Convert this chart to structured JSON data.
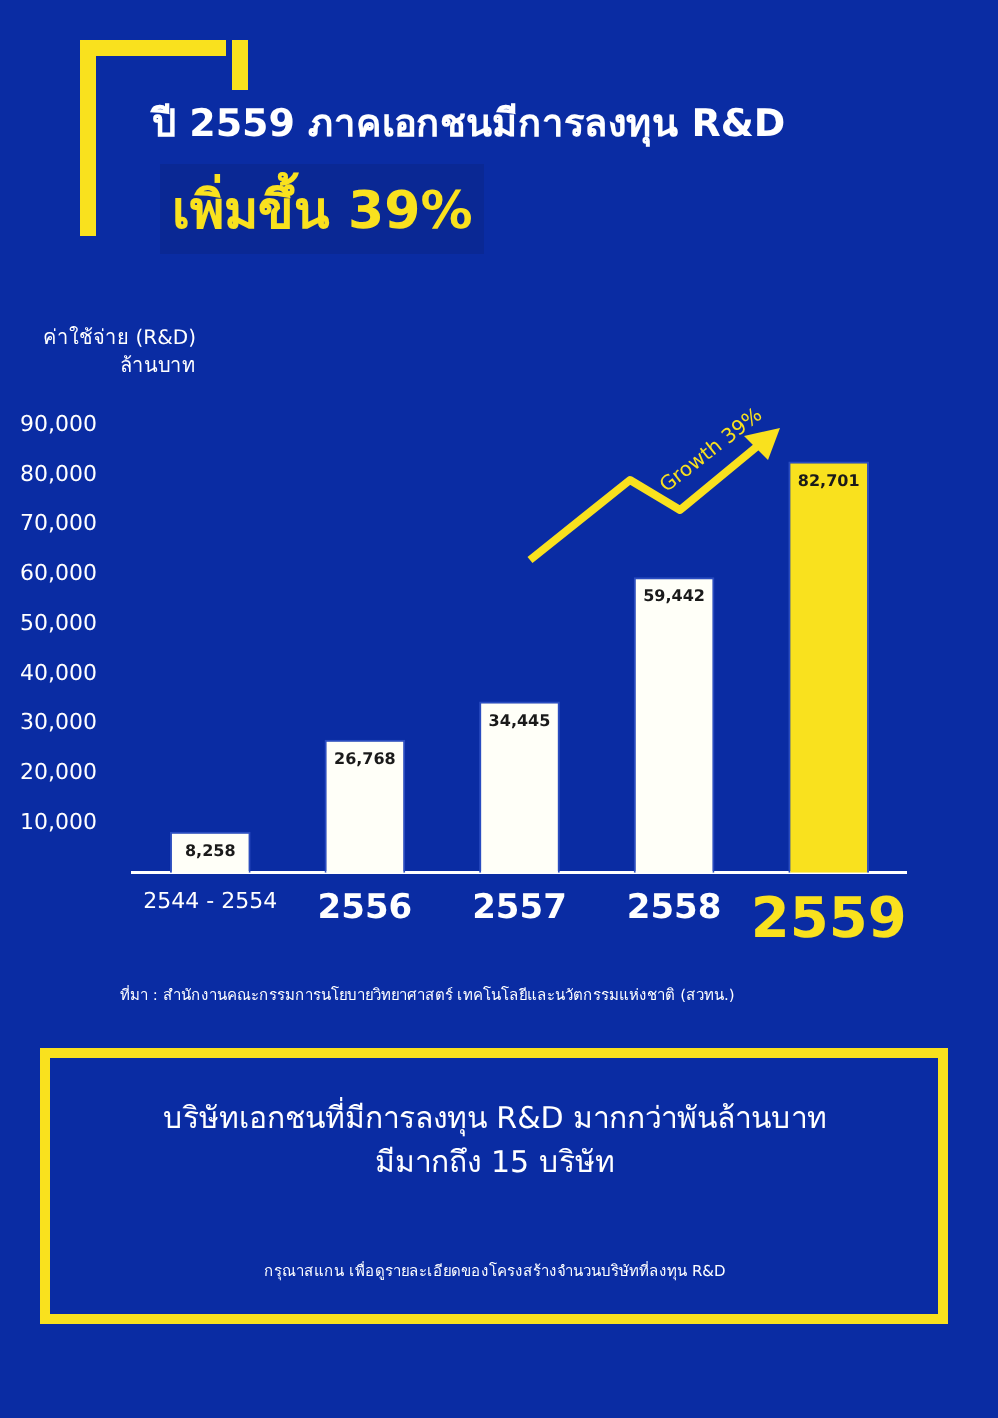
{
  "chart_data": {
    "type": "bar",
    "title": "ปี 2559 ภาคเอกชนมีการลงทุน R&D",
    "subtitle": "เพิ่มขึ้น 39%",
    "ylabel": "ค่าใช้จ่าย (R&D)\nล้านบาท",
    "categories": [
      "2544 - 2554",
      "2556",
      "2557",
      "2558",
      "2559"
    ],
    "values": [
      8258,
      26768,
      34445,
      59442,
      82701
    ],
    "colors": [
      "#fffff8",
      "#fffff8",
      "#fffff8",
      "#fffff8",
      "#f9e11e"
    ],
    "ylim": [
      0,
      90000
    ],
    "yticks": [
      {
        "value": 10000,
        "label": "10,000"
      },
      {
        "value": 20000,
        "label": "20,000"
      },
      {
        "value": 30000,
        "label": "30,000"
      },
      {
        "value": 40000,
        "label": "40,000"
      },
      {
        "value": 50000,
        "label": "50,000"
      },
      {
        "value": 60000,
        "label": "60,000"
      },
      {
        "value": 70000,
        "label": "70,000"
      },
      {
        "value": 80000,
        "label": "80,000"
      },
      {
        "value": 90000,
        "label": "90,000"
      }
    ],
    "value_labels": [
      "8,258",
      "26,768",
      "34,445",
      "59,442",
      "82,701"
    ],
    "grid": false,
    "legend": false,
    "annotations": [
      "Growth 39%",
      "ที่มา : สำนักงานคณะกรรมการนโยบายวิทยาศาสตร์ เทคโนโลยีและนวัตกรรมแห่งชาติ (สวทน.)",
      "บริษัทเอกชนที่มีการลงทุน R&D มากกว่าพันล้านบาท\nมีมากถึง 15 บริษัท",
      "กรุณาสแกน เพื่อดูรายละเอียดของโครงสร้างจำนวนบริษัทที่ลงทุน R&D"
    ]
  }
}
